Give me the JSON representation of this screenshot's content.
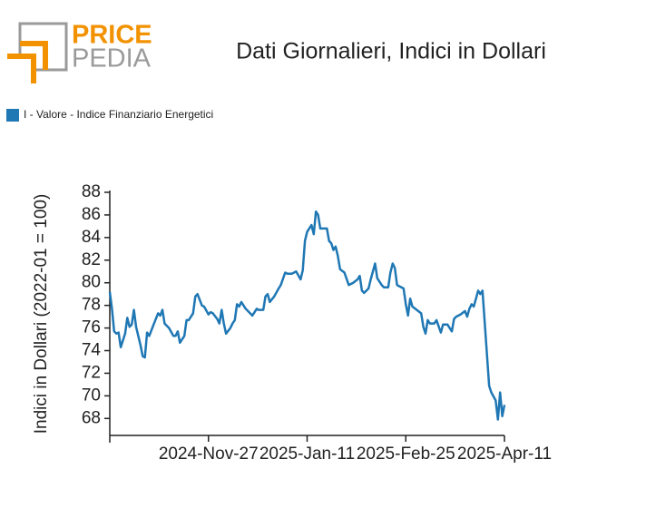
{
  "logo": {
    "top": "PRICE",
    "bottom": "PEDIA"
  },
  "chart_data": {
    "type": "line",
    "title": "Dati Giornalieri, Indici in Dollari",
    "ylabel": "Indici in Dollari (2022-01 = 100)",
    "legend": "top-left",
    "xlim": [
      "2024-10-13",
      "2025-04-11"
    ],
    "xticks": [
      {
        "value": "2024-11-27",
        "label": "2024-Nov-27"
      },
      {
        "value": "2025-01-11",
        "label": "2025-Jan-11"
      },
      {
        "value": "2025-02-25",
        "label": "2025-Feb-25"
      },
      {
        "value": "2025-04-11",
        "label": "2025-Apr-11"
      }
    ],
    "ylim": [
      66.5,
      88
    ],
    "yticks": [
      68,
      70,
      72,
      74,
      76,
      78,
      80,
      82,
      84,
      86,
      88
    ],
    "x": [
      "2024-10-13",
      "2024-10-14",
      "2024-10-15",
      "2024-10-16",
      "2024-10-17",
      "2024-10-18",
      "2024-10-19",
      "2024-10-20",
      "2024-10-21",
      "2024-10-22",
      "2024-10-23",
      "2024-10-24",
      "2024-10-25",
      "2024-10-27",
      "2024-10-28",
      "2024-10-29",
      "2024-10-30",
      "2024-10-31",
      "2024-11-02",
      "2024-11-04",
      "2024-11-05",
      "2024-11-06",
      "2024-11-07",
      "2024-11-09",
      "2024-11-11",
      "2024-11-12",
      "2024-11-13",
      "2024-11-14",
      "2024-11-16",
      "2024-11-17",
      "2024-11-18",
      "2024-11-20",
      "2024-11-21",
      "2024-11-22",
      "2024-11-23",
      "2024-11-24",
      "2024-11-25",
      "2024-11-27",
      "2024-11-28",
      "2024-11-29",
      "2024-12-01",
      "2024-12-02",
      "2024-12-03",
      "2024-12-04",
      "2024-12-05",
      "2024-12-07",
      "2024-12-08",
      "2024-12-09",
      "2024-12-10",
      "2024-12-11",
      "2024-12-12",
      "2024-12-14",
      "2024-12-15",
      "2024-12-17",
      "2024-12-19",
      "2024-12-20",
      "2024-12-22",
      "2024-12-23",
      "2024-12-24",
      "2024-12-25",
      "2024-12-27",
      "2024-12-29",
      "2024-12-30",
      "2025-01-01",
      "2025-01-02",
      "2025-01-04",
      "2025-01-06",
      "2025-01-08",
      "2025-01-09",
      "2025-01-10",
      "2025-01-11",
      "2025-01-13",
      "2025-01-14",
      "2025-01-15",
      "2025-01-16",
      "2025-01-17",
      "2025-01-18",
      "2025-01-20",
      "2025-01-21",
      "2025-01-22",
      "2025-01-23",
      "2025-01-24",
      "2025-01-25",
      "2025-01-26",
      "2025-01-28",
      "2025-01-30",
      "2025-02-01",
      "2025-02-03",
      "2025-02-04",
      "2025-02-05",
      "2025-02-06",
      "2025-02-08",
      "2025-02-09",
      "2025-02-11",
      "2025-02-12",
      "2025-02-14",
      "2025-02-15",
      "2025-02-17",
      "2025-02-18",
      "2025-02-19",
      "2025-02-20",
      "2025-02-21",
      "2025-02-22",
      "2025-02-24",
      "2025-02-25",
      "2025-02-26",
      "2025-02-27",
      "2025-02-28",
      "2025-03-02",
      "2025-03-04",
      "2025-03-05",
      "2025-03-06",
      "2025-03-07",
      "2025-03-08",
      "2025-03-10",
      "2025-03-11",
      "2025-03-13",
      "2025-03-14",
      "2025-03-16",
      "2025-03-18",
      "2025-03-19",
      "2025-03-20",
      "2025-03-22",
      "2025-03-24",
      "2025-03-25",
      "2025-03-26",
      "2025-03-27",
      "2025-03-28",
      "2025-03-30",
      "2025-03-31",
      "2025-04-01",
      "2025-04-04",
      "2025-04-05",
      "2025-04-07",
      "2025-04-08",
      "2025-04-09",
      "2025-04-10",
      "2025-04-11"
    ],
    "series": [
      {
        "name": "I - Valore - Indice Finanziario Energetici",
        "color": "#1f77b4",
        "values": [
          79.2,
          77.7,
          75.7,
          75.5,
          75.6,
          74.3,
          74.9,
          75.5,
          76.9,
          76.1,
          76.3,
          77.6,
          76.1,
          74.5,
          73.5,
          73.4,
          75.6,
          75.3,
          76.3,
          77.3,
          77.1,
          77.6,
          76.4,
          76.0,
          75.3,
          75.3,
          75.7,
          74.7,
          75.3,
          76.7,
          76.7,
          77.3,
          78.8,
          79.0,
          78.5,
          78.0,
          77.9,
          77.2,
          77.4,
          77.3,
          76.8,
          76.4,
          77.6,
          76.4,
          75.5,
          76.0,
          76.4,
          76.7,
          78.1,
          77.9,
          78.3,
          77.7,
          77.5,
          77.1,
          77.7,
          77.6,
          77.6,
          78.8,
          79.0,
          78.3,
          78.8,
          79.5,
          79.8,
          80.9,
          80.8,
          80.8,
          81.0,
          80.3,
          81.1,
          83.7,
          84.5,
          85.1,
          84.3,
          86.3,
          86.0,
          84.8,
          84.8,
          84.8,
          83.7,
          83.5,
          82.9,
          83.2,
          82.4,
          81.2,
          80.9,
          79.8,
          80.0,
          80.3,
          80.6,
          79.3,
          79.1,
          79.5,
          80.3,
          81.7,
          80.4,
          79.8,
          79.6,
          79.6,
          80.9,
          81.7,
          81.3,
          79.8,
          79.7,
          79.5,
          78.1,
          77.1,
          78.6,
          77.9,
          77.6,
          77.3,
          76.1,
          75.5,
          76.7,
          76.4,
          76.4,
          76.7,
          75.6,
          76.3,
          76.3,
          75.7,
          76.8,
          77.0,
          77.2,
          77.5,
          77.0,
          77.7,
          78.1,
          77.9,
          79.3,
          79.0,
          79.3,
          70.9,
          70.3,
          69.6,
          67.9,
          70.3,
          68.2,
          69.2
        ]
      }
    ]
  }
}
